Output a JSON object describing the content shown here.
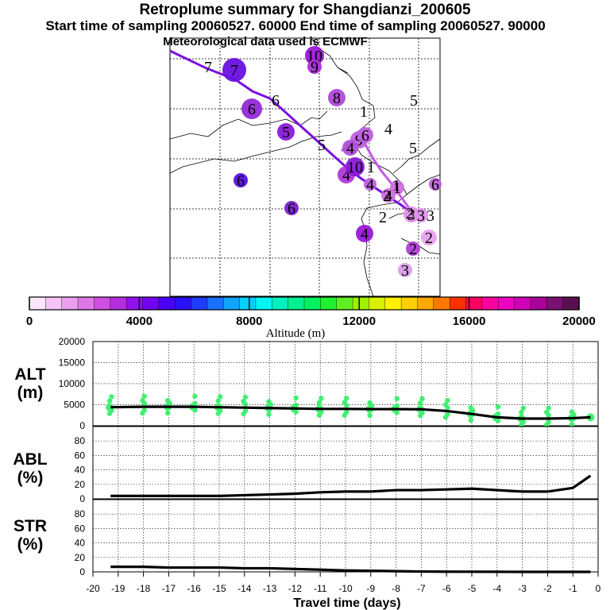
{
  "header": {
    "title": "Retroplume summary for Shangdianzi_200605",
    "subtitle": "Start time of sampling 20060527. 60000     End time of sampling 20060527. 90000",
    "met_line": "Meteorological data used is ECMWF"
  },
  "colorbar": {
    "label": "Altitude (m)",
    "ticks": [
      "0",
      "4000",
      "8000",
      "12000",
      "16000",
      "20000"
    ],
    "colors": [
      "#fbe6fb",
      "#f4c4f4",
      "#eba0ee",
      "#df78e6",
      "#cf4fe0",
      "#b42ee0",
      "#9311ea",
      "#7205f0",
      "#4a00f4",
      "#2a10ff",
      "#1f3cff",
      "#1870ff",
      "#10a5ff",
      "#00d0ff",
      "#00f4f4",
      "#00f0c0",
      "#00f090",
      "#00f060",
      "#20f030",
      "#60f020",
      "#a0f000",
      "#d8f000",
      "#fff000",
      "#ffd000",
      "#ffa800",
      "#ff7800",
      "#ff3000",
      "#ff0060",
      "#ff00a0",
      "#f000c0",
      "#d000b8",
      "#a80098",
      "#7a1070",
      "#5a1050"
    ]
  },
  "map": {
    "labels": [
      "7",
      "7",
      "10",
      "9",
      "6",
      "6",
      "8",
      "1",
      "5",
      "5",
      "4",
      "5",
      "6",
      "4",
      "10",
      "9",
      "6",
      "4",
      "6",
      "2",
      "1",
      "4",
      "1",
      "3",
      "1",
      "4",
      "6",
      "5",
      "2",
      "3",
      "2",
      "3",
      "4",
      "2",
      "2",
      "3"
    ]
  },
  "chart_data": [
    {
      "type": "line",
      "name": "ALT",
      "ylabel": "ALT\n(m)",
      "ylim": [
        0,
        20000
      ],
      "yticks": [
        "0",
        "5000",
        "10000",
        "15000",
        "20000"
      ],
      "x": [
        -19.3,
        -18,
        -17,
        -16,
        -15,
        -14,
        -13,
        -12,
        -11,
        -10,
        -9,
        -8,
        -7,
        -6,
        -5,
        -4,
        -3,
        -2,
        -1,
        -0.3
      ],
      "values": [
        4400,
        4500,
        4500,
        4500,
        4400,
        4300,
        4200,
        4100,
        4000,
        4000,
        3950,
        3950,
        3900,
        3500,
        2800,
        2000,
        1700,
        1700,
        1800,
        2000
      ],
      "scatter_color": "#40f070"
    },
    {
      "type": "line",
      "name": "ABL",
      "ylabel": "ABL\n(%)",
      "ylim": [
        0,
        100
      ],
      "yticks": [
        "0",
        "20",
        "40",
        "60",
        "80"
      ],
      "x": [
        -19.3,
        -18,
        -17,
        -16,
        -15,
        -14,
        -13,
        -12,
        -11,
        -10,
        -9,
        -8,
        -7,
        -6,
        -5,
        -4,
        -3,
        -2,
        -1,
        -0.3
      ],
      "values": [
        4,
        4,
        4,
        4,
        4,
        5,
        6,
        7,
        9,
        10,
        10,
        12,
        12,
        13,
        14,
        12,
        10,
        10,
        15,
        32
      ]
    },
    {
      "type": "line",
      "name": "STR",
      "ylabel": "STR\n(%)",
      "ylim": [
        0,
        100
      ],
      "yticks": [
        "0",
        "20",
        "40",
        "60",
        "80"
      ],
      "x": [
        -19.3,
        -18,
        -17,
        -16,
        -15,
        -14,
        -13,
        -12,
        -11,
        -10,
        -9,
        -8,
        -7,
        -6,
        -5,
        -4,
        -3,
        -2,
        -1,
        -0.3
      ],
      "values": [
        7,
        7,
        6,
        6,
        6,
        5,
        5,
        4,
        3,
        2,
        1.5,
        1,
        0.5,
        0.3,
        0.2,
        0.1,
        0,
        0,
        0,
        0
      ]
    }
  ],
  "xaxis": {
    "label": "Travel time (days)",
    "xlim": [
      -20,
      0
    ],
    "ticks": [
      "-20",
      "-19",
      "-18",
      "-17",
      "-16",
      "-15",
      "-14",
      "-13",
      "-12",
      "-11",
      "-10",
      "-9",
      "-8",
      "-7",
      "-6",
      "-5",
      "-4",
      "-3",
      "-2",
      "-1",
      "0"
    ]
  }
}
